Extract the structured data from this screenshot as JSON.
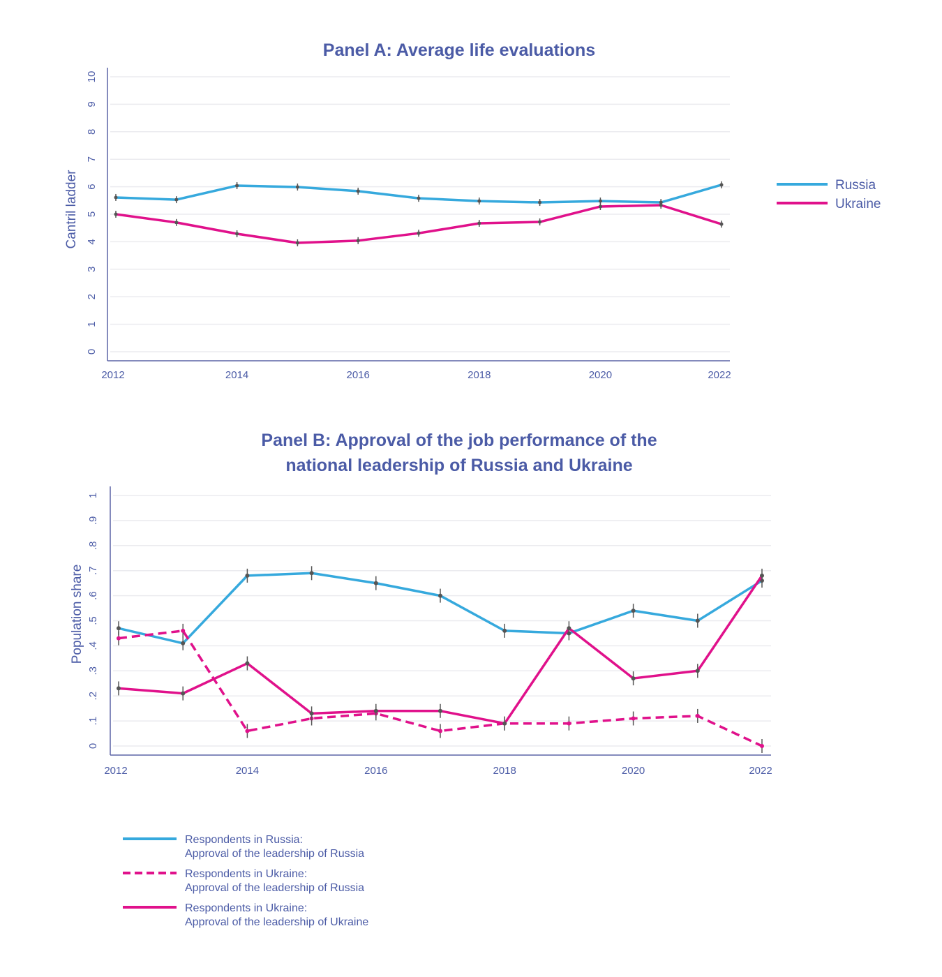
{
  "colors": {
    "russia": "#36a9dd",
    "ukraine": "#e0118b",
    "text": "#4b5ba6",
    "errorbar": "#555555"
  },
  "chart_data": [
    {
      "type": "line",
      "title": "Panel A: Average life evaluations",
      "xlabel": "",
      "ylabel": "Cantril ladder",
      "x": [
        2012,
        2013,
        2014,
        2015,
        2016,
        2017,
        2018,
        2019,
        2020,
        2021,
        2022
      ],
      "xticks": [
        "2012",
        "2014",
        "2016",
        "2018",
        "2020",
        "2022"
      ],
      "yticks": [
        "0",
        "1",
        "2",
        "3",
        "4",
        "5",
        "6",
        "7",
        "8",
        "9",
        "10"
      ],
      "ylim": [
        0,
        10
      ],
      "xlim": [
        2012,
        2022
      ],
      "grid": true,
      "legend_position": "right",
      "series": [
        {
          "name": "Russia",
          "color_key": "russia",
          "dashed": false,
          "values": [
            5.61,
            5.53,
            6.04,
            5.99,
            5.84,
            5.58,
            5.48,
            5.43,
            5.48,
            5.43,
            6.07
          ]
        },
        {
          "name": "Ukraine",
          "color_key": "ukraine",
          "dashed": false,
          "values": [
            5.0,
            4.7,
            4.29,
            3.96,
            4.04,
            4.31,
            4.67,
            4.72,
            5.28,
            5.33,
            4.64
          ]
        }
      ]
    },
    {
      "type": "line",
      "title": "Panel B: Approval of the job performance of the national leadership of Russia and Ukraine",
      "title_lines": [
        "Panel B: Approval of the job performance of the",
        "national leadership of Russia and Ukraine"
      ],
      "xlabel": "",
      "ylabel": "Population share",
      "x": [
        2012,
        2013,
        2014,
        2015,
        2016,
        2017,
        2018,
        2019,
        2020,
        2021,
        2022
      ],
      "xticks": [
        "2012",
        "2014",
        "2016",
        "2018",
        "2020",
        "2022"
      ],
      "yticks": [
        "0",
        ".1",
        ".2",
        ".3",
        ".4",
        ".5",
        ".6",
        ".7",
        ".8",
        ".9",
        "1"
      ],
      "ylim": [
        0,
        1
      ],
      "xlim": [
        2012,
        2022
      ],
      "grid": true,
      "legend_position": "bottom",
      "series": [
        {
          "name": "Respondents in Russia: Approval of the leadership of Russia",
          "legend_lines": [
            "Respondents in Russia:",
            "Approval of the leadership of Russia"
          ],
          "color_key": "russia",
          "dashed": false,
          "values": [
            0.47,
            0.41,
            0.68,
            0.69,
            0.65,
            0.6,
            0.46,
            0.45,
            0.54,
            0.5,
            0.66
          ]
        },
        {
          "name": "Respondents in Ukraine: Approval of the leadership of Russia",
          "legend_lines": [
            "Respondents in Ukraine:",
            "Approval of the leadership of Russia"
          ],
          "color_key": "ukraine",
          "dashed": true,
          "values": [
            0.43,
            0.46,
            0.06,
            0.11,
            0.13,
            0.06,
            0.09,
            0.09,
            0.11,
            0.12,
            0.0
          ]
        },
        {
          "name": "Respondents in Ukraine: Approval of the leadership of Ukraine",
          "legend_lines": [
            "Respondents in Ukraine:",
            "Approval of the leadership of Ukraine"
          ],
          "color_key": "ukraine",
          "dashed": false,
          "values": [
            0.23,
            0.21,
            0.33,
            0.13,
            0.14,
            0.14,
            0.09,
            0.47,
            0.27,
            0.3,
            0.68
          ]
        }
      ]
    }
  ]
}
